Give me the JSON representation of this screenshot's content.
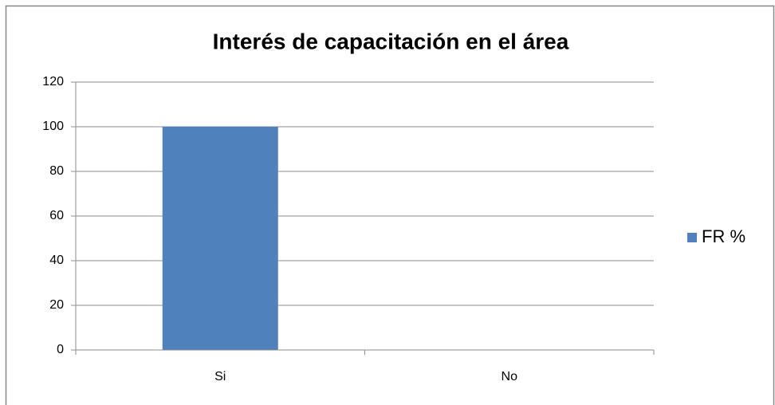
{
  "chart_data": {
    "type": "bar",
    "title": "Interés de capacitación en el área",
    "categories": [
      "Si",
      "No"
    ],
    "series": [
      {
        "name": "FR %",
        "color": "#4f81bd",
        "values": [
          100,
          0
        ]
      }
    ],
    "ylim": [
      0,
      120
    ],
    "yticks": [
      0,
      20,
      40,
      60,
      80,
      100,
      120
    ],
    "grid": true,
    "legend": "right"
  }
}
